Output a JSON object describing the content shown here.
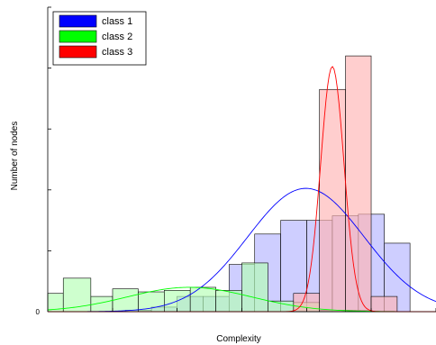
{
  "chart_data": {
    "type": "bar",
    "xlabel": "Complexity",
    "ylabel": "Number of nodes",
    "y_tick_labels": [
      "0"
    ],
    "xlim": [
      0,
      1
    ],
    "ylim": [
      0,
      1
    ],
    "grid": false,
    "legend_position": "top-left",
    "colors": {
      "class 1": "#0000ff",
      "class 2": "#00ff00",
      "class 3": "#ff0000"
    },
    "series": [
      {
        "name": "class 1",
        "bins": [
          [
            0.0,
            0.067,
            0.0
          ],
          [
            0.067,
            0.133,
            0.0
          ],
          [
            0.133,
            0.2,
            0.0
          ],
          [
            0.2,
            0.267,
            0.005
          ],
          [
            0.267,
            0.333,
            0.015
          ],
          [
            0.333,
            0.4,
            0.05
          ],
          [
            0.4,
            0.467,
            0.05
          ],
          [
            0.467,
            0.533,
            0.155
          ],
          [
            0.533,
            0.6,
            0.255
          ],
          [
            0.6,
            0.667,
            0.3
          ],
          [
            0.667,
            0.733,
            0.3
          ],
          [
            0.733,
            0.8,
            0.315
          ],
          [
            0.8,
            0.867,
            0.32
          ],
          [
            0.867,
            0.933,
            0.225
          ]
        ],
        "curve_peak": 0.405,
        "curve_center": 0.665,
        "curve_width": 0.15
      },
      {
        "name": "class 2",
        "bins": [
          [
            0.0,
            0.04,
            0.06
          ],
          [
            0.04,
            0.111,
            0.11
          ],
          [
            0.111,
            0.167,
            0.05
          ],
          [
            0.167,
            0.233,
            0.075
          ],
          [
            0.233,
            0.3,
            0.065
          ],
          [
            0.3,
            0.367,
            0.07
          ],
          [
            0.367,
            0.433,
            0.08
          ],
          [
            0.433,
            0.5,
            0.07
          ],
          [
            0.5,
            0.567,
            0.16
          ],
          [
            0.567,
            0.633,
            0.035
          ],
          [
            0.633,
            0.7,
            0.03
          ],
          [
            0.7,
            0.767,
            0.005
          ],
          [
            0.767,
            0.833,
            0.005
          ]
        ],
        "curve_peak": 0.08,
        "curve_center": 0.365,
        "curve_width": 0.16
      },
      {
        "name": "class 3",
        "bins": [
          [
            0.633,
            0.7,
            0.06
          ],
          [
            0.7,
            0.767,
            0.73
          ],
          [
            0.767,
            0.833,
            0.84
          ],
          [
            0.833,
            0.9,
            0.05
          ]
        ],
        "curve_peak": 0.805,
        "curve_center": 0.733,
        "curve_width": 0.03
      }
    ]
  }
}
